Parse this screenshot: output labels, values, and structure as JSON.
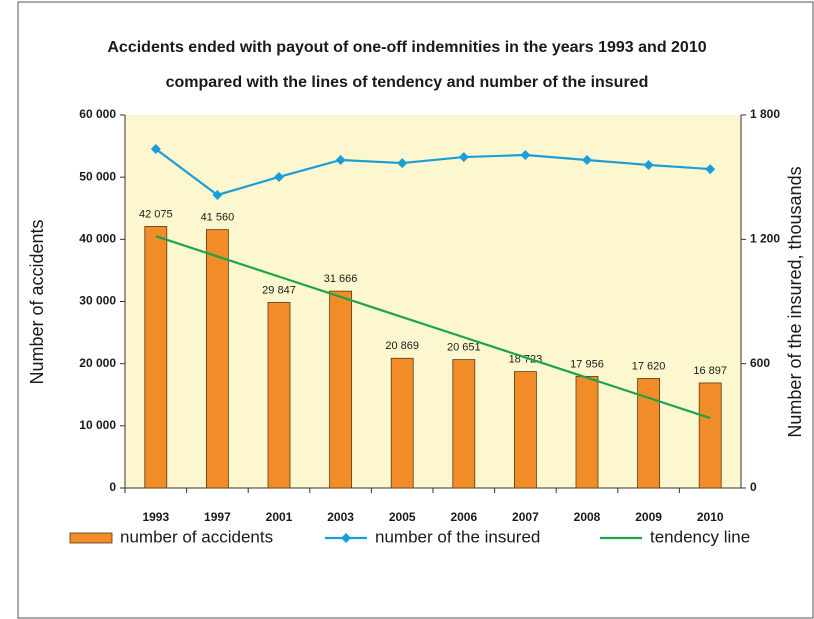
{
  "chart_data": {
    "type": "bar-line",
    "title": "Accidents ended with payout of one-off indemnities in the years 1993 and 2010",
    "subtitle": "compared with the lines of tendency and number of the insured",
    "ylabel": "Number of accidents",
    "y2label": "Number of the insured, thousands",
    "categories": [
      "1993",
      "1997",
      "2001",
      "2003",
      "2005",
      "2006",
      "2007",
      "2008",
      "2009",
      "2010"
    ],
    "series": [
      {
        "name": "number of accidents",
        "type": "bar",
        "color": "#f28c28",
        "values": [
          42075,
          41560,
          29847,
          31666,
          20869,
          20651,
          18723,
          17956,
          17620,
          16897
        ],
        "value_labels": [
          "42 075",
          "41 560",
          "29 847",
          "31 666",
          "20 869",
          "20 651",
          "18 723",
          "17 956",
          "17 620",
          "16 897"
        ]
      },
      {
        "name": "number of the insured",
        "type": "line",
        "axis": "y2",
        "color": "#1a9ed9",
        "marker": "diamond",
        "values": [
          1636,
          1414,
          1501,
          1583,
          1568,
          1597,
          1607,
          1583,
          1559,
          1539
        ]
      },
      {
        "name": "tendency line",
        "type": "line",
        "color": "#1ea446",
        "values": [
          40500,
          37250,
          34000,
          30750,
          27500,
          24250,
          21000,
          17750,
          14500,
          11250
        ]
      }
    ],
    "ylim": [
      0,
      60000
    ],
    "yticks": [
      0,
      {
        "value": 10000,
        "label": "10 000"
      },
      {
        "value": 20000,
        "label": "20 000"
      },
      {
        "value": 30000,
        "label": "30 000"
      },
      {
        "value": 40000,
        "label": "40 000"
      },
      {
        "value": 50000,
        "label": "50 000"
      },
      {
        "value": 60000,
        "label": "60 000"
      }
    ],
    "y2lim": [
      0,
      1800
    ],
    "y2ticks": [
      0,
      600,
      {
        "value": 1200,
        "label": "1 200"
      },
      {
        "value": 1800,
        "label": "1 800"
      }
    ],
    "legend": "bottom"
  }
}
